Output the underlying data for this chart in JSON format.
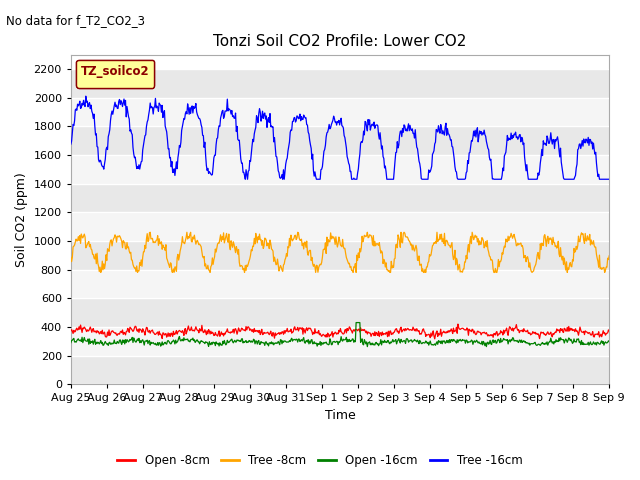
{
  "title": "Tonzi Soil CO2 Profile: Lower CO2",
  "suptitle": "No data for f_T2_CO2_3",
  "xlabel": "Time",
  "ylabel": "Soil CO2 (ppm)",
  "ylim": [
    0,
    2300
  ],
  "yticks": [
    0,
    200,
    400,
    600,
    800,
    1000,
    1200,
    1400,
    1600,
    1800,
    2000,
    2200
  ],
  "legend_label": "TZ_soilco2",
  "legend_entries": [
    "Open -8cm",
    "Tree -8cm",
    "Open -16cm",
    "Tree -16cm"
  ],
  "legend_colors": [
    "red",
    "orange",
    "green",
    "blue"
  ],
  "x_tick_labels": [
    "Aug 25",
    "Aug 26",
    "Aug 27",
    "Aug 28",
    "Aug 29",
    "Aug 30",
    "Aug 31",
    "Sep 1",
    "Sep 2",
    "Sep 3",
    "Sep 4",
    "Sep 5",
    "Sep 6",
    "Sep 7",
    "Sep 8",
    "Sep 9"
  ],
  "fig_bg": "#ffffff",
  "plot_bg": "#ffffff",
  "band_colors": [
    "#e8e8e8",
    "#f5f5f5"
  ]
}
